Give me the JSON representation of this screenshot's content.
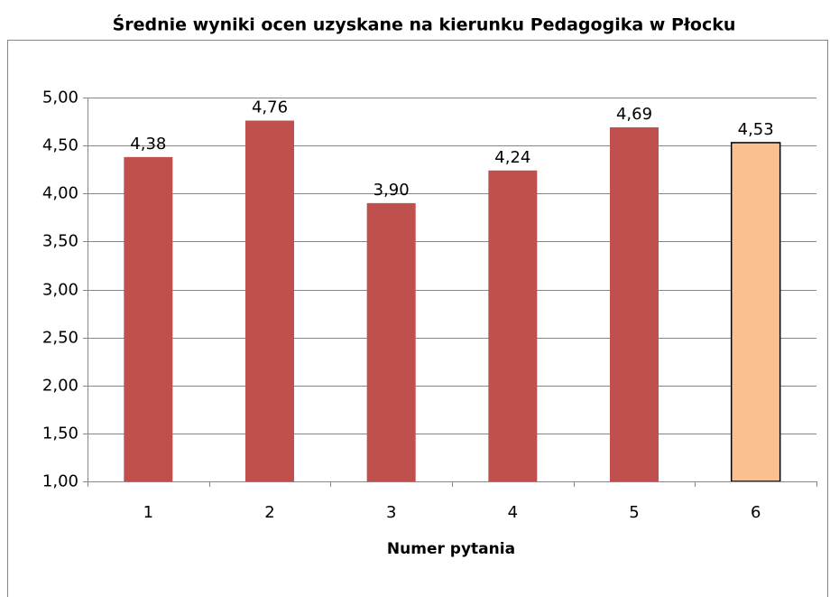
{
  "chart_data": {
    "type": "bar",
    "title": "Średnie wyniki ocen uzyskane na kierunku Pedagogika w Płocku",
    "x_label": "Numer pytania",
    "categories": [
      "1",
      "2",
      "3",
      "4",
      "5",
      "6"
    ],
    "values": [
      4.38,
      4.76,
      3.9,
      4.24,
      4.69,
      4.53
    ],
    "value_labels": [
      "4,38",
      "4,76",
      "3,90",
      "4,24",
      "4,69",
      "4,53"
    ],
    "colors": [
      "#c0504d",
      "#c0504d",
      "#c0504d",
      "#c0504d",
      "#c0504d",
      "#fac090"
    ],
    "edgecolors": [
      null,
      null,
      null,
      null,
      null,
      "#000000"
    ],
    "ylim": [
      1,
      5
    ],
    "yticks": [
      {
        "value": 1,
        "label": "1,00"
      },
      {
        "value": 1.5,
        "label": "1,50"
      },
      {
        "value": 2,
        "label": "2,00"
      },
      {
        "value": 2.5,
        "label": "2,50"
      },
      {
        "value": 3,
        "label": "3,00"
      },
      {
        "value": 3.5,
        "label": "3,50"
      },
      {
        "value": 4,
        "label": "4,00"
      },
      {
        "value": 4.5,
        "label": "4,50"
      },
      {
        "value": 5,
        "label": "5,00"
      }
    ],
    "grid": true
  }
}
